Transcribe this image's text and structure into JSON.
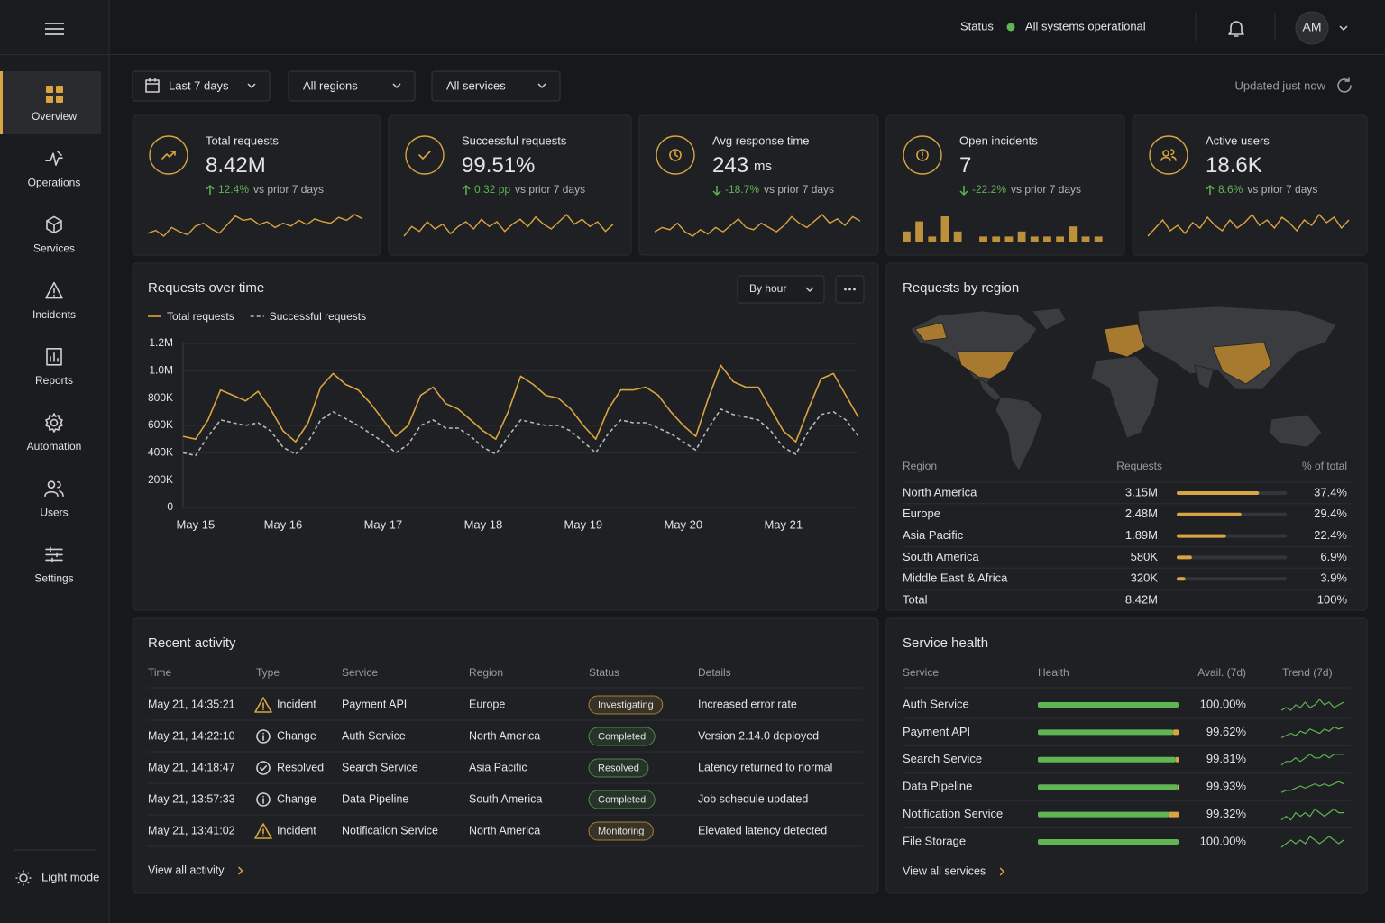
{
  "sidebar": {
    "nav": [
      "Overview",
      "Operations",
      "Services",
      "Incidents",
      "Reports",
      "Automation",
      "Users",
      "Settings"
    ],
    "theme_toggle": "Light mode"
  },
  "header": {
    "status_label": "Status",
    "status_text": "All systems operational",
    "avatar": "AM",
    "status_color": "#5fb454"
  },
  "filters": {
    "date": "Last 7 days",
    "region": "All regions",
    "service": "All services",
    "updated": "Updated just now"
  },
  "accent": "#d9a441",
  "positive_color": "#5fb454",
  "kpis": [
    {
      "label": "Total requests",
      "value": "8.42M",
      "change": "12.4%",
      "comparison": "vs prior 7 days",
      "spark": {
        "type": "line",
        "values": [
          40,
          42,
          38,
          44,
          41,
          39,
          45,
          47,
          43,
          40,
          46,
          52,
          49,
          50,
          46,
          48,
          44,
          47,
          45,
          49,
          46,
          50,
          48,
          47,
          51,
          49,
          53,
          50
        ]
      }
    },
    {
      "label": "Successful requests",
      "value": "99.51%",
      "change": "0.32 pp",
      "comparison": "vs prior 7 days",
      "spark": {
        "type": "line",
        "values": [
          44,
          48,
          46,
          50,
          47,
          49,
          45,
          48,
          50,
          47,
          51,
          48,
          50,
          46,
          49,
          51,
          48,
          52,
          49,
          47,
          50,
          53,
          49,
          51,
          48,
          50,
          46,
          49
        ]
      }
    },
    {
      "label": "Avg response time",
      "value": "243",
      "unit": "ms",
      "change": "-18.7%",
      "comparison": "vs prior 7 days",
      "spark": {
        "type": "line",
        "values": [
          44,
          46,
          45,
          48,
          44,
          42,
          45,
          43,
          46,
          44,
          47,
          50,
          46,
          45,
          48,
          46,
          44,
          47,
          51,
          48,
          46,
          49,
          52,
          48,
          50,
          47,
          51,
          49
        ]
      }
    },
    {
      "label": "Open incidents",
      "value": "7",
      "change": "-22.2%",
      "comparison": "vs prior 7 days",
      "spark": {
        "type": "bars",
        "values": [
          2,
          4,
          1,
          5,
          2,
          0,
          1,
          1,
          1,
          2,
          1,
          1,
          1,
          3,
          1,
          1
        ]
      }
    },
    {
      "label": "Active users",
      "value": "18.6K",
      "change": "8.6%",
      "comparison": "vs prior 7 days",
      "spark": {
        "type": "line",
        "values": [
          42,
          45,
          48,
          44,
          46,
          43,
          47,
          45,
          49,
          46,
          44,
          48,
          45,
          47,
          50,
          46,
          48,
          45,
          49,
          47,
          44,
          48,
          46,
          50,
          47,
          49,
          45,
          48
        ]
      }
    }
  ],
  "chart_data": {
    "type": "line",
    "title": "Requests over time",
    "control": "By hour",
    "categories": [
      null,
      "May 15",
      null,
      null,
      null,
      null,
      null,
      null,
      "May 16",
      null,
      null,
      null,
      null,
      null,
      null,
      null,
      "May 17",
      null,
      null,
      null,
      null,
      null,
      null,
      null,
      "May 18",
      null,
      null,
      null,
      null,
      null,
      null,
      null,
      "May 19",
      null,
      null,
      null,
      null,
      null,
      null,
      null,
      "May 20",
      null,
      null,
      null,
      null,
      null,
      null,
      null,
      "May 21",
      null,
      null,
      null,
      null,
      null,
      null
    ],
    "series": [
      {
        "name": "Total requests",
        "color": "#d9a441",
        "dashed": false,
        "values": [
          520000,
          500000,
          640000,
          860000,
          820000,
          780000,
          850000,
          720000,
          560000,
          480000,
          620000,
          880000,
          980000,
          900000,
          860000,
          760000,
          640000,
          520000,
          600000,
          820000,
          880000,
          760000,
          720000,
          640000,
          560000,
          500000,
          700000,
          960000,
          900000,
          820000,
          800000,
          720000,
          600000,
          500000,
          720000,
          860000,
          860000,
          880000,
          820000,
          700000,
          600000,
          520000,
          800000,
          1040000,
          920000,
          880000,
          880000,
          720000,
          560000,
          480000,
          720000,
          940000,
          980000,
          820000,
          660000
        ]
      },
      {
        "name": "Successful requests",
        "color": "#b8b8b8",
        "dashed": true,
        "values": [
          400000,
          380000,
          520000,
          640000,
          620000,
          600000,
          620000,
          560000,
          440000,
          390000,
          480000,
          640000,
          700000,
          650000,
          600000,
          540000,
          480000,
          400000,
          460000,
          600000,
          640000,
          580000,
          580000,
          520000,
          440000,
          390000,
          520000,
          640000,
          620000,
          600000,
          600000,
          560000,
          480000,
          400000,
          540000,
          640000,
          620000,
          620000,
          580000,
          540000,
          480000,
          420000,
          580000,
          720000,
          680000,
          660000,
          640000,
          560000,
          440000,
          390000,
          560000,
          680000,
          700000,
          640000,
          520000
        ]
      }
    ],
    "ylim": [
      0,
      1200000
    ],
    "yticks": [
      0,
      {
        "value": 200000,
        "label": "200K"
      },
      {
        "value": 400000,
        "label": "400K"
      },
      {
        "value": 600000,
        "label": "600K"
      },
      {
        "value": 800000,
        "label": "800K"
      },
      {
        "value": 1000000,
        "label": "1.0M"
      },
      {
        "value": 1200000,
        "label": "1.2M"
      }
    ],
    "grid": true
  },
  "regions": {
    "title": "Requests by region",
    "columns": [
      "Region",
      "Requests",
      "% of total"
    ],
    "bar_color": "#d9a441",
    "bar_scale": [
      0,
      50
    ],
    "rows": [
      {
        "region": "North America",
        "requests": "3.15M",
        "share": 37.4,
        "share_label": "37.4%"
      },
      {
        "region": "Europe",
        "requests": "2.48M",
        "share": 29.4,
        "share_label": "29.4%"
      },
      {
        "region": "Asia Pacific",
        "requests": "1.89M",
        "share": 22.4,
        "share_label": "22.4%"
      },
      {
        "region": "South America",
        "requests": "580K",
        "share": 6.9,
        "share_label": "6.9%"
      },
      {
        "region": "Middle East & Africa",
        "requests": "320K",
        "share": 3.9,
        "share_label": "3.9%"
      }
    ],
    "total": {
      "region": "Total",
      "requests": "8.42M",
      "share_label": "100%"
    }
  },
  "activity": {
    "title": "Recent activity",
    "columns": [
      "Time",
      "Type",
      "Service",
      "Region",
      "Status",
      "Details"
    ],
    "rows": [
      [
        "May 21, 14:35:21",
        "Incident",
        "Payment API",
        "Europe",
        "Investigating",
        "Increased error rate"
      ],
      [
        "May 21, 14:22:10",
        "Change",
        "Auth Service",
        "North America",
        "Completed",
        "Version 2.14.0 deployed"
      ],
      [
        "May 21, 14:18:47",
        "Resolved",
        "Search Service",
        "Asia Pacific",
        "Resolved",
        "Latency returned to normal"
      ],
      [
        "May 21, 13:57:33",
        "Change",
        "Data Pipeline",
        "South America",
        "Completed",
        "Job schedule updated"
      ],
      [
        "May 21, 13:41:02",
        "Incident",
        "Notification Service",
        "North America",
        "Monitoring",
        "Elevated latency detected"
      ]
    ],
    "type_icons": {
      "Incident": "warning",
      "Change": "info",
      "Resolved": "check"
    },
    "status_colors": {
      "Investigating": "#d9a441",
      "Completed": "#5fb454",
      "Resolved": "#5fb454",
      "Monitoring": "#d9a441"
    },
    "link": "View all activity"
  },
  "health": {
    "title": "Service health",
    "columns": [
      "Service",
      "Health",
      "Avail. (7d)",
      "Trend (7d)"
    ],
    "health_scale": [
      90,
      100
    ],
    "good_color": "#5fb454",
    "warn_color": "#d9a441",
    "rows": [
      {
        "service": "Auth Service",
        "availability": 100,
        "availability_label": "100.00%",
        "trend": [
          5,
          6,
          5,
          7,
          6,
          8,
          6,
          7,
          9,
          7,
          8,
          6,
          7,
          8
        ]
      },
      {
        "service": "Payment API",
        "availability": 99.62,
        "availability_label": "99.62%",
        "trend": [
          4,
          5,
          6,
          5,
          7,
          6,
          8,
          7,
          6,
          8,
          7,
          9,
          8,
          9
        ]
      },
      {
        "service": "Search Service",
        "availability": 99.81,
        "availability_label": "99.81%",
        "trend": [
          5,
          6,
          6,
          7,
          6,
          7,
          8,
          7,
          7,
          8,
          7,
          8,
          8,
          8
        ]
      },
      {
        "service": "Data Pipeline",
        "availability": 99.93,
        "availability_label": "99.93%",
        "trend": [
          4,
          5,
          5,
          6,
          7,
          6,
          7,
          8,
          7,
          8,
          7,
          8,
          9,
          8
        ]
      },
      {
        "service": "Notification Service",
        "availability": 99.32,
        "availability_label": "99.32%",
        "trend": [
          5,
          6,
          5,
          7,
          6,
          7,
          6,
          8,
          7,
          6,
          7,
          8,
          7,
          7
        ]
      },
      {
        "service": "File Storage",
        "availability": 100,
        "availability_label": "100.00%",
        "trend": [
          5,
          6,
          7,
          6,
          7,
          6,
          8,
          7,
          6,
          7,
          8,
          7,
          6,
          7
        ]
      }
    ],
    "link": "View all services"
  }
}
